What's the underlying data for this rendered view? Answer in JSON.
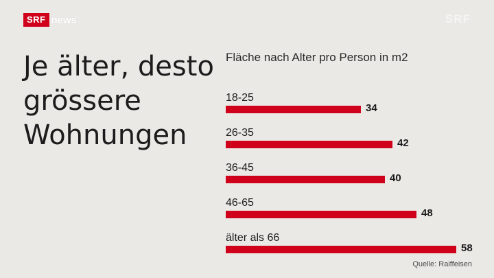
{
  "brand": {
    "box": "SRF",
    "text": "news"
  },
  "watermark": "SRF",
  "headline": [
    "Je älter, desto",
    "grössere",
    "Wohnungen"
  ],
  "source": "Quelle: Raiffeisen",
  "colors": {
    "bar": "#d0021b",
    "background": "#ebe9e6"
  },
  "chart_data": {
    "type": "bar",
    "orientation": "horizontal",
    "title": "Fläche nach Alter pro Person in m2",
    "categories": [
      "18-25",
      "26-35",
      "36-45",
      "46-65",
      "älter als 66"
    ],
    "values": [
      34,
      42,
      40,
      48,
      58
    ],
    "xlim": [
      0,
      58
    ],
    "grid": false
  }
}
